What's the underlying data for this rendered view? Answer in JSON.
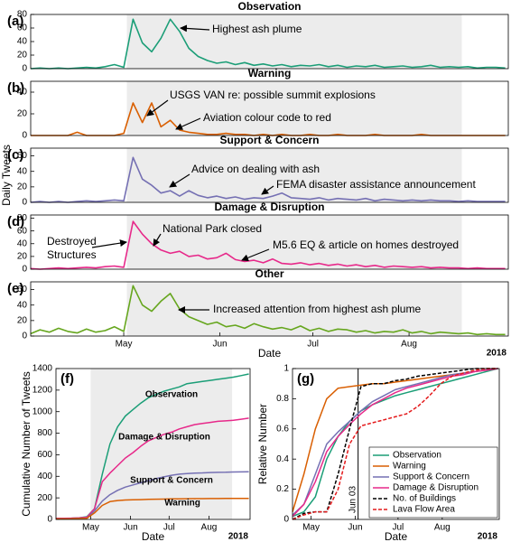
{
  "chart_data": [
    {
      "type": "line",
      "title": "Observation",
      "panel_label": "(a)",
      "color": "#1b9e77",
      "annotations": [
        [
          "Highest ash plume"
        ]
      ],
      "x": [
        0,
        3,
        6,
        9,
        12,
        15,
        18,
        21,
        24,
        27,
        30,
        33,
        36,
        39,
        42,
        45,
        48,
        51,
        54,
        57,
        60,
        63,
        66,
        69,
        72,
        75,
        78,
        81,
        84,
        87,
        90,
        93,
        96,
        99,
        102,
        105,
        108,
        111,
        114,
        117,
        120,
        123,
        126,
        129,
        132,
        135,
        138,
        141,
        144,
        147,
        150,
        153
      ],
      "values": [
        0,
        1,
        0,
        1,
        0,
        1,
        2,
        1,
        3,
        6,
        2,
        73,
        38,
        25,
        45,
        73,
        55,
        30,
        18,
        12,
        8,
        10,
        6,
        9,
        5,
        7,
        4,
        6,
        3,
        5,
        4,
        6,
        3,
        5,
        2,
        4,
        3,
        5,
        2,
        3,
        4,
        2,
        3,
        5,
        2,
        3,
        2,
        3,
        1,
        2,
        2,
        1
      ],
      "xlim": [
        0,
        154
      ],
      "ylim": [
        0,
        80
      ],
      "yticks": [
        0,
        20,
        40,
        60,
        80
      ],
      "shaded_span": [
        31,
        139
      ]
    },
    {
      "type": "line",
      "title": "Warning",
      "panel_label": "(b)",
      "color": "#d95f02",
      "annotations": [
        [
          "USGS VAN re: possible summit explosions"
        ],
        [
          "Aviation colour code to red"
        ]
      ],
      "x": [
        0,
        3,
        6,
        9,
        12,
        15,
        18,
        21,
        24,
        27,
        30,
        33,
        36,
        39,
        42,
        45,
        48,
        51,
        54,
        57,
        60,
        63,
        66,
        69,
        72,
        75,
        78,
        81,
        84,
        87,
        90,
        93,
        96,
        99,
        102,
        105,
        108,
        111,
        114,
        117,
        120,
        123,
        126,
        129,
        132,
        135,
        138,
        141,
        144,
        147,
        150,
        153
      ],
      "values": [
        0,
        0,
        0,
        0,
        0,
        3,
        0,
        0,
        0,
        0,
        2,
        30,
        12,
        30,
        8,
        14,
        5,
        3,
        2,
        1,
        1,
        2,
        1,
        1,
        0,
        1,
        0,
        1,
        0,
        0,
        1,
        0,
        0,
        1,
        0,
        0,
        0,
        1,
        0,
        0,
        0,
        0,
        1,
        0,
        0,
        0,
        0,
        0,
        0,
        0,
        0,
        0
      ],
      "xlim": [
        0,
        154
      ],
      "ylim": [
        0,
        50
      ],
      "yticks": [
        0,
        20,
        40
      ],
      "shaded_span": [
        31,
        139
      ]
    },
    {
      "type": "line",
      "title": "Support & Concern",
      "panel_label": "(c)",
      "color": "#7570b3",
      "y_label": "Daily Tweets",
      "annotations": [
        [
          "Advice on dealing with ash"
        ],
        [
          "FEMA disaster assistance announcement"
        ]
      ],
      "x": [
        0,
        3,
        6,
        9,
        12,
        15,
        18,
        21,
        24,
        27,
        30,
        33,
        36,
        39,
        42,
        45,
        48,
        51,
        54,
        57,
        60,
        63,
        66,
        69,
        72,
        75,
        78,
        81,
        84,
        87,
        90,
        93,
        96,
        99,
        102,
        105,
        108,
        111,
        114,
        117,
        120,
        123,
        126,
        129,
        132,
        135,
        138,
        141,
        144,
        147,
        150,
        153
      ],
      "values": [
        0,
        1,
        0,
        1,
        0,
        1,
        2,
        1,
        2,
        3,
        2,
        58,
        30,
        22,
        12,
        15,
        8,
        15,
        9,
        6,
        8,
        5,
        7,
        4,
        6,
        5,
        8,
        12,
        6,
        5,
        4,
        6,
        3,
        5,
        4,
        3,
        5,
        2,
        4,
        3,
        2,
        3,
        2,
        3,
        2,
        2,
        1,
        2,
        1,
        1,
        1,
        1
      ],
      "xlim": [
        0,
        154
      ],
      "ylim": [
        0,
        70
      ],
      "yticks": [
        0,
        20,
        40,
        60
      ],
      "shaded_span": [
        31,
        139
      ]
    },
    {
      "type": "line",
      "title": "Damage & Disruption",
      "panel_label": "(d)",
      "color": "#e7298a",
      "annotations": [
        [
          "National Park closed"
        ],
        [
          "Destroyed",
          "Structures"
        ],
        [
          "M5.6 EQ & article on homes destroyed"
        ]
      ],
      "x": [
        0,
        3,
        6,
        9,
        12,
        15,
        18,
        21,
        24,
        27,
        30,
        33,
        36,
        39,
        42,
        45,
        48,
        51,
        54,
        57,
        60,
        63,
        66,
        69,
        72,
        75,
        78,
        81,
        84,
        87,
        90,
        93,
        96,
        99,
        102,
        105,
        108,
        111,
        114,
        117,
        120,
        123,
        126,
        129,
        132,
        135,
        138,
        141,
        144,
        147,
        150,
        153
      ],
      "values": [
        1,
        0,
        1,
        2,
        1,
        2,
        3,
        2,
        4,
        5,
        3,
        75,
        55,
        40,
        30,
        25,
        28,
        20,
        22,
        16,
        18,
        25,
        15,
        12,
        14,
        10,
        16,
        9,
        8,
        10,
        7,
        9,
        6,
        8,
        5,
        7,
        4,
        6,
        3,
        5,
        4,
        3,
        4,
        2,
        3,
        2,
        2,
        1,
        2,
        1,
        1,
        1
      ],
      "xlim": [
        0,
        154
      ],
      "ylim": [
        0,
        85
      ],
      "yticks": [
        0,
        20,
        40,
        60,
        80
      ],
      "shaded_span": [
        31,
        139
      ]
    },
    {
      "type": "line",
      "title": "Other",
      "panel_label": "(e)",
      "color": "#66a61e",
      "x_label": "Date",
      "year_label": "2018",
      "annotations": [
        [
          "Increased attention from highest ash plume"
        ]
      ],
      "x": [
        0,
        3,
        6,
        9,
        12,
        15,
        18,
        21,
        24,
        27,
        30,
        33,
        36,
        39,
        42,
        45,
        48,
        51,
        54,
        57,
        60,
        63,
        66,
        69,
        72,
        75,
        78,
        81,
        84,
        87,
        90,
        93,
        96,
        99,
        102,
        105,
        108,
        111,
        114,
        117,
        120,
        123,
        126,
        129,
        132,
        135,
        138,
        141,
        144,
        147,
        150,
        153
      ],
      "values": [
        3,
        8,
        5,
        10,
        6,
        4,
        9,
        5,
        7,
        12,
        6,
        65,
        40,
        32,
        45,
        55,
        35,
        25,
        20,
        15,
        18,
        12,
        14,
        10,
        16,
        12,
        9,
        11,
        8,
        13,
        7,
        10,
        6,
        9,
        8,
        5,
        7,
        4,
        6,
        5,
        8,
        4,
        6,
        3,
        5,
        4,
        3,
        4,
        2,
        3,
        2,
        2
      ],
      "xlim": [
        0,
        154
      ],
      "ylim": [
        0,
        70
      ],
      "yticks": [
        0,
        20,
        40,
        60
      ],
      "shaded_span": [
        31,
        139
      ],
      "xticks": [
        {
          "value": 30,
          "label": "May"
        },
        {
          "value": 61,
          "label": "Jun"
        },
        {
          "value": 91,
          "label": "Jul"
        },
        {
          "value": 122,
          "label": "Aug"
        }
      ]
    },
    {
      "type": "line",
      "panel_label": "(f)",
      "y_label": "Cumulative Number of Tweets",
      "x_label": "Date",
      "year_label": "2018",
      "labels_on_lines": true,
      "x": [
        3,
        9,
        15,
        21,
        27,
        33,
        39,
        45,
        51,
        57,
        63,
        69,
        75,
        81,
        87,
        93,
        99,
        105,
        111,
        117,
        123,
        129,
        135,
        141,
        147,
        153
      ],
      "series": [
        {
          "name": "Observation",
          "color": "#1b9e77",
          "values": [
            10,
            10,
            12,
            15,
            25,
            100,
            420,
            700,
            860,
            960,
            1020,
            1080,
            1130,
            1160,
            1190,
            1210,
            1230,
            1260,
            1270,
            1280,
            1290,
            1300,
            1310,
            1320,
            1335,
            1350
          ]
        },
        {
          "name": "Damage & Disruption",
          "color": "#e7298a",
          "values": [
            10,
            10,
            12,
            14,
            20,
            100,
            350,
            430,
            500,
            570,
            620,
            680,
            730,
            760,
            790,
            810,
            840,
            860,
            880,
            890,
            900,
            910,
            915,
            920,
            930,
            940
          ]
        },
        {
          "name": "Support & Concern",
          "color": "#7570b3",
          "values": [
            5,
            5,
            6,
            8,
            10,
            80,
            170,
            230,
            270,
            300,
            320,
            340,
            360,
            380,
            395,
            410,
            420,
            425,
            430,
            432,
            435,
            437,
            438,
            440,
            441,
            442
          ]
        },
        {
          "name": "Warning",
          "color": "#d95f02",
          "values": [
            5,
            5,
            6,
            8,
            10,
            60,
            130,
            165,
            175,
            180,
            182,
            184,
            186,
            188,
            189,
            190,
            191,
            192,
            193,
            193,
            194,
            194,
            195,
            195,
            195,
            195
          ]
        }
      ],
      "xlim": [
        3,
        154
      ],
      "ylim": [
        0,
        1400
      ],
      "yticks": [
        0,
        200,
        400,
        600,
        800,
        1000,
        1200,
        1400
      ],
      "shaded_span": [
        30,
        140
      ],
      "xticks": [
        {
          "value": 30,
          "label": "May"
        },
        {
          "value": 61,
          "label": "Jun"
        },
        {
          "value": 91,
          "label": "Jul"
        },
        {
          "value": 122,
          "label": "Aug"
        }
      ]
    },
    {
      "type": "line",
      "panel_label": "(g)",
      "y_label": "Relative Number",
      "x_label": "Date",
      "year_label": "2018",
      "legend": "lower right",
      "vline": {
        "value": 63,
        "label": "Jun 03"
      },
      "x": [
        17,
        25,
        33,
        41,
        49,
        57,
        65,
        73,
        81,
        89,
        97,
        105,
        113,
        121,
        129,
        137,
        145,
        153,
        161
      ],
      "series": [
        {
          "name": "Observation",
          "color": "#1b9e77",
          "values": [
            0.02,
            0.05,
            0.15,
            0.4,
            0.55,
            0.65,
            0.72,
            0.76,
            0.79,
            0.82,
            0.84,
            0.86,
            0.88,
            0.9,
            0.92,
            0.94,
            0.96,
            0.98,
            1
          ]
        },
        {
          "name": "Warning",
          "color": "#d95f02",
          "values": [
            0.05,
            0.3,
            0.6,
            0.8,
            0.87,
            0.88,
            0.89,
            0.9,
            0.9,
            0.91,
            0.92,
            0.93,
            0.94,
            0.95,
            0.96,
            0.97,
            0.98,
            0.99,
            1
          ]
        },
        {
          "name": "Support & Concern",
          "color": "#7570b3",
          "values": [
            0.03,
            0.1,
            0.3,
            0.5,
            0.58,
            0.65,
            0.72,
            0.78,
            0.82,
            0.86,
            0.88,
            0.9,
            0.92,
            0.94,
            0.96,
            0.97,
            0.98,
            0.99,
            1
          ]
        },
        {
          "name": "Damage & Disruption",
          "color": "#e7298a",
          "values": [
            0.02,
            0.1,
            0.25,
            0.45,
            0.55,
            0.63,
            0.7,
            0.76,
            0.8,
            0.84,
            0.87,
            0.89,
            0.91,
            0.93,
            0.95,
            0.96,
            0.98,
            0.99,
            1
          ]
        },
        {
          "name": "No. of Buildings",
          "color": "#000000",
          "dashed": true,
          "values": [
            0,
            0.04,
            0.05,
            0.05,
            0.3,
            0.6,
            0.88,
            0.9,
            0.9,
            0.92,
            0.93,
            0.95,
            0.96,
            0.97,
            0.98,
            0.99,
            1,
            1,
            1
          ]
        },
        {
          "name": "Lava Flow Area",
          "color": "#e41a1c",
          "dashed": true,
          "values": [
            0,
            0.03,
            0.05,
            0.05,
            0.2,
            0.5,
            0.62,
            0.64,
            0.66,
            0.68,
            0.7,
            0.75,
            0.82,
            0.9,
            0.95,
            0.97,
            0.99,
            1,
            1
          ]
        }
      ],
      "xlim": [
        17,
        162
      ],
      "ylim": [
        0,
        1
      ],
      "yticks": [
        0,
        0.2,
        0.4,
        0.6,
        0.8,
        1
      ],
      "xticks": [
        {
          "value": 30,
          "label": "May"
        },
        {
          "value": 61,
          "label": "Jun"
        },
        {
          "value": 91,
          "label": "Jul"
        },
        {
          "value": 122,
          "label": "Aug"
        }
      ]
    }
  ]
}
